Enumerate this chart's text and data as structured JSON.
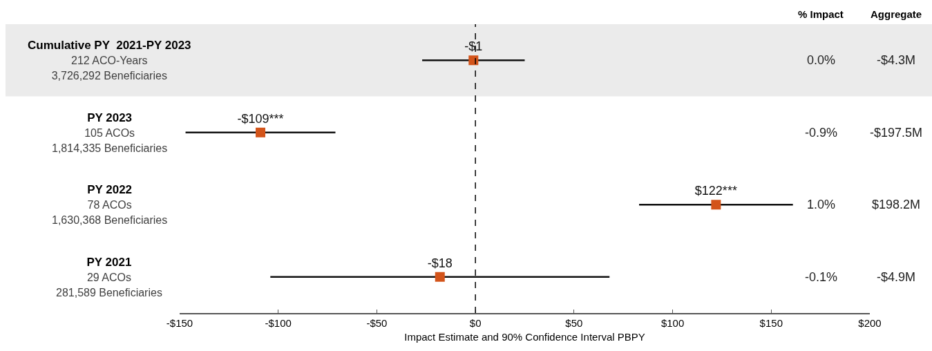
{
  "chart_data": {
    "type": "scatter",
    "orientation": "horizontal",
    "categories": [
      "Cumulative PY  2021-PY 2023\n212 ACO-Years\n3,726,292 Beneficiaries",
      "PY 2023\n105 ACOs\n1,814,335 Beneficiaries",
      "PY 2022\n78 ACOs\n1,630,368 Beneficiaries",
      "PY 2021\n29 ACOs\n281,589 Beneficiaries"
    ],
    "values": [
      -1,
      -109,
      122,
      -18
    ],
    "errors": [
      26,
      38,
      39,
      86
    ],
    "value_labels": [
      "-$1",
      "-$109***",
      "$122***",
      "-$18"
    ],
    "color": "#d3541a",
    "marker": "square",
    "xlabel": "Impact Estimate and 90% Confidence Interval PBPY",
    "xlim": [
      -150,
      200
    ],
    "xticks": [
      {
        "value": -150,
        "label": "-$150"
      },
      {
        "value": -100,
        "label": "-$100"
      },
      {
        "value": -50,
        "label": "-$50"
      },
      {
        "value": 0,
        "label": "$0"
      },
      {
        "value": 50,
        "label": "$50"
      },
      {
        "value": 100,
        "label": "$100"
      },
      {
        "value": 150,
        "label": "$150"
      },
      {
        "value": 200,
        "label": "$200"
      }
    ],
    "ref_lines": [
      {
        "axis": "x",
        "value": 0,
        "line_style": "dashed",
        "color": "#000000"
      }
    ],
    "bands": [
      {
        "axis": "y",
        "from": "Cumulative PY  2021-PY 2023\n212 ACO-Years\n3,726,292 Beneficiaries",
        "to": "Cumulative PY  2021-PY 2023\n212 ACO-Years\n3,726,292 Beneficiaries",
        "color": "#ebebeb"
      }
    ],
    "annotations": [
      "% Impact",
      "Aggregate",
      "0.0%",
      "-$4.3M",
      "-0.9%",
      "-$197.5M",
      "1.0%",
      "$198.2M",
      "-0.1%",
      "-$4.9M"
    ]
  }
}
